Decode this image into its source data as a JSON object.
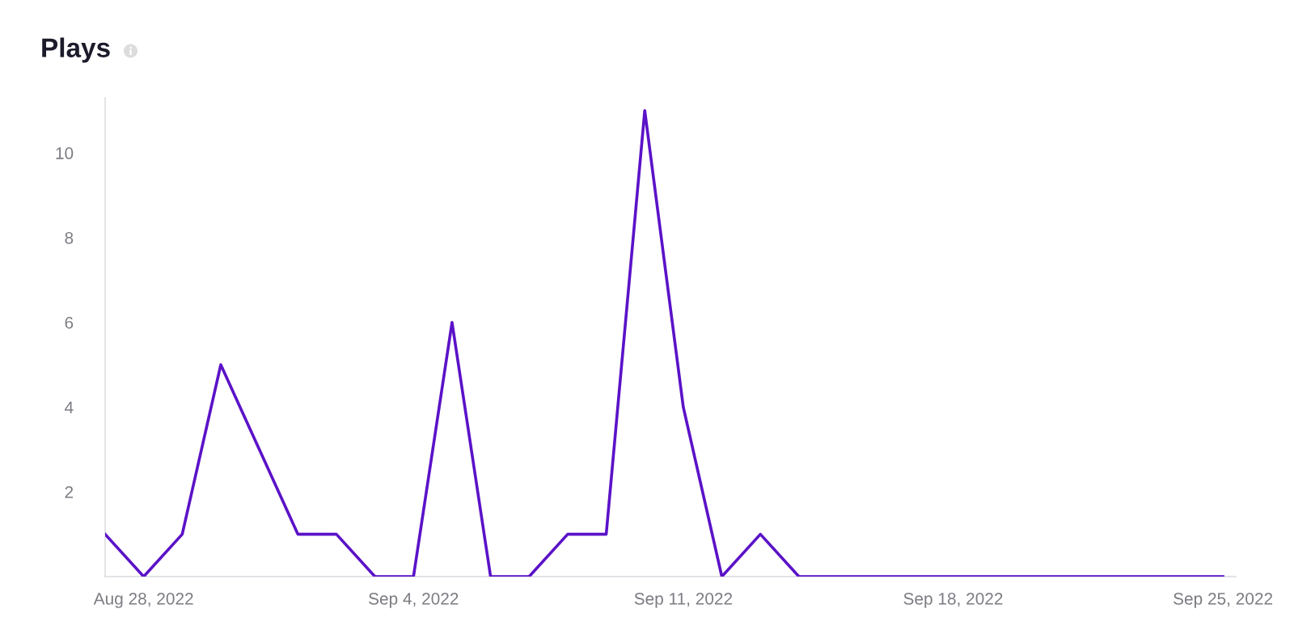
{
  "chart_data": {
    "type": "line",
    "title": "Plays",
    "x": [
      "2022-08-27",
      "2022-08-28",
      "2022-08-29",
      "2022-08-30",
      "2022-08-31",
      "2022-09-01",
      "2022-09-02",
      "2022-09-03",
      "2022-09-04",
      "2022-09-05",
      "2022-09-06",
      "2022-09-07",
      "2022-09-08",
      "2022-09-09",
      "2022-09-10",
      "2022-09-11",
      "2022-09-12",
      "2022-09-13",
      "2022-09-14",
      "2022-09-15",
      "2022-09-16",
      "2022-09-17",
      "2022-09-18",
      "2022-09-19",
      "2022-09-20",
      "2022-09-21",
      "2022-09-22",
      "2022-09-23",
      "2022-09-24",
      "2022-09-25"
    ],
    "series": [
      {
        "color": "#5b12c8",
        "values": [
          1,
          0,
          1,
          5,
          3,
          1,
          1,
          0,
          0,
          6,
          0,
          0,
          1,
          1,
          11,
          4,
          0,
          1,
          0,
          0,
          0,
          0,
          0,
          0,
          0,
          0,
          0,
          0,
          0,
          0
        ]
      }
    ],
    "xlim": [
      "2022-08-27",
      "2022-09-25T08:00"
    ],
    "xticks": [
      {
        "value": "2022-08-28",
        "label": "Aug 28, 2022"
      },
      {
        "value": "2022-09-04",
        "label": "Sep 4, 2022"
      },
      {
        "value": "2022-09-11",
        "label": "Sep 11, 2022"
      },
      {
        "value": "2022-09-18",
        "label": "Sep 18, 2022"
      },
      {
        "value": "2022-09-25",
        "label": "Sep 25, 2022"
      }
    ],
    "ylim": [
      0,
      11.3
    ],
    "yticks": [
      2,
      4,
      6,
      8,
      10
    ],
    "grid": false,
    "marker": "none",
    "line_style": "solid"
  }
}
